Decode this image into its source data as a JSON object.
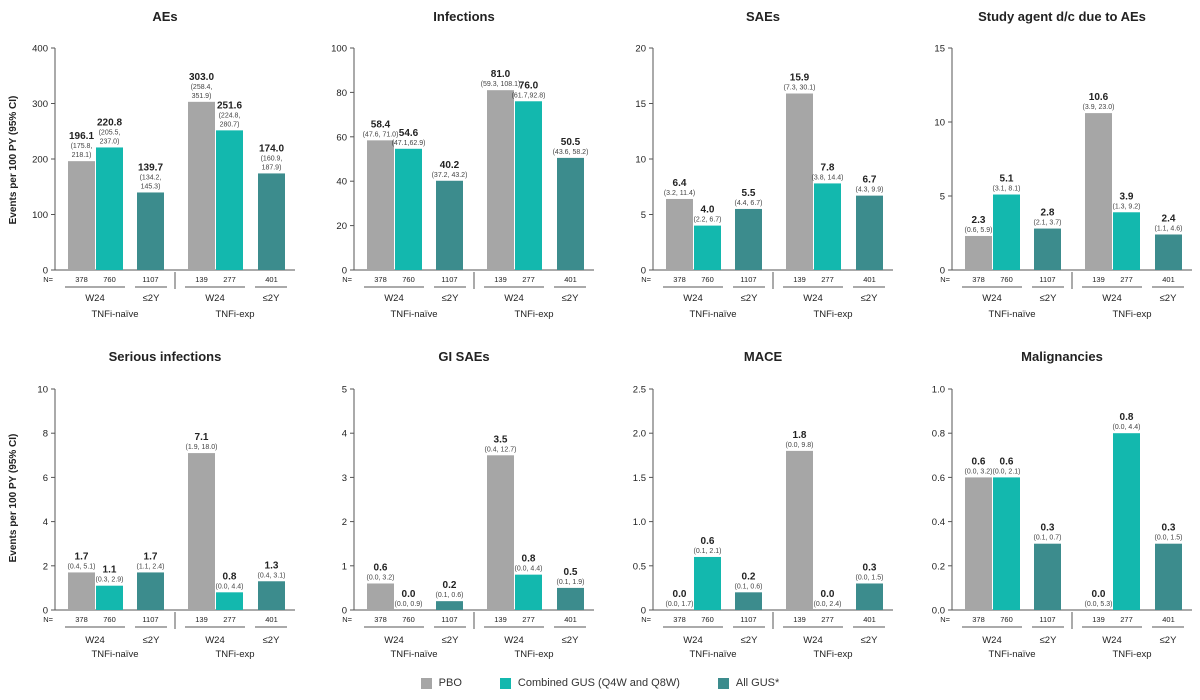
{
  "colors": {
    "pbo": "#a6a6a6",
    "combined": "#13b8ae",
    "all_gus": "#3c8c8d",
    "axis": "#555555",
    "text": "#222222"
  },
  "common": {
    "ylabel": "Events per 100 PY (95% CI)",
    "n_prefix": "N=",
    "n_values": [
      "378",
      "760",
      "1107",
      "139",
      "277",
      "401"
    ],
    "timepoints": [
      "W24",
      "≤2Y",
      "W24",
      "≤2Y"
    ],
    "groups": [
      "TNFi-naïve",
      "TNFi-exp"
    ]
  },
  "legend": [
    {
      "label": "PBO",
      "color": "#a6a6a6"
    },
    {
      "label": "Combined GUS (Q4W and Q8W)",
      "color": "#13b8ae"
    },
    {
      "label": "All GUS*",
      "color": "#3c8c8d"
    }
  ],
  "chart_data": [
    {
      "type": "bar",
      "title": "AEs",
      "ylabel": "Events per 100 PY (95% CI)",
      "ylim": [
        0,
        400
      ],
      "yticks": [
        "0",
        "100",
        "200",
        "300",
        "400"
      ],
      "categories": [
        "378",
        "760",
        "1107",
        "139",
        "277",
        "401"
      ],
      "series_per_bar": [
        "PBO",
        "Combined GUS",
        "All GUS",
        "PBO",
        "Combined GUS",
        "All GUS"
      ],
      "values": [
        196.1,
        220.8,
        139.7,
        303.0,
        251.6,
        174.0
      ],
      "value_labels": [
        "196.1",
        "220.8",
        "139.7",
        "303.0",
        "251.6",
        "174.0"
      ],
      "ci_labels": [
        [
          "(175.8,",
          "218.1)"
        ],
        [
          "(205.5,",
          "237.0)"
        ],
        [
          "(134.2,",
          "145.3)"
        ],
        [
          "(258.4,",
          "351.9)"
        ],
        [
          "(224.8,",
          "280.7)"
        ],
        [
          "(160.9,",
          "187.9)"
        ]
      ]
    },
    {
      "type": "bar",
      "title": "Infections",
      "ylim": [
        0,
        100
      ],
      "yticks": [
        "0",
        "20",
        "40",
        "60",
        "80",
        "100"
      ],
      "categories": [
        "378",
        "760",
        "1107",
        "139",
        "277",
        "401"
      ],
      "series_per_bar": [
        "PBO",
        "Combined GUS",
        "All GUS",
        "PBO",
        "Combined GUS",
        "All GUS"
      ],
      "values": [
        58.4,
        54.6,
        40.2,
        81.0,
        76.0,
        50.5
      ],
      "value_labels": [
        "58.4",
        "54.6",
        "40.2",
        "81.0",
        "76.0",
        "50.5"
      ],
      "ci_labels": [
        [
          "(47.6, 71.0)"
        ],
        [
          "(47.1,62.9)"
        ],
        [
          "(37.2, 43.2)"
        ],
        [
          "(59.3, 108.1)"
        ],
        [
          "(61.7,92.8)"
        ],
        [
          "(43.6, 58.2)"
        ]
      ]
    },
    {
      "type": "bar",
      "title": "SAEs",
      "ylim": [
        0,
        20
      ],
      "yticks": [
        "0",
        "5",
        "10",
        "15",
        "20"
      ],
      "categories": [
        "378",
        "760",
        "1107",
        "139",
        "277",
        "401"
      ],
      "series_per_bar": [
        "PBO",
        "Combined GUS",
        "All GUS",
        "PBO",
        "Combined GUS",
        "All GUS"
      ],
      "values": [
        6.4,
        4.0,
        5.5,
        15.9,
        7.8,
        6.7
      ],
      "value_labels": [
        "6.4",
        "4.0",
        "5.5",
        "15.9",
        "7.8",
        "6.7"
      ],
      "ci_labels": [
        [
          "(3.2, 11.4)"
        ],
        [
          "(2.2, 6.7)"
        ],
        [
          "(4.4, 6.7)"
        ],
        [
          "(7.3, 30.1)"
        ],
        [
          "(3.8, 14.4)"
        ],
        [
          "(4.3, 9.9)"
        ]
      ]
    },
    {
      "type": "bar",
      "title": "Study agent d/c due to AEs",
      "ylim": [
        0,
        15
      ],
      "yticks": [
        "0",
        "5",
        "10",
        "15"
      ],
      "categories": [
        "378",
        "760",
        "1107",
        "139",
        "277",
        "401"
      ],
      "series_per_bar": [
        "PBO",
        "Combined GUS",
        "All GUS",
        "PBO",
        "Combined GUS",
        "All GUS"
      ],
      "values": [
        2.3,
        5.1,
        2.8,
        10.6,
        3.9,
        2.4
      ],
      "value_labels": [
        "2.3",
        "5.1",
        "2.8",
        "10.6",
        "3.9",
        "2.4"
      ],
      "ci_labels": [
        [
          "(0.6, 5.9)"
        ],
        [
          "(3.1, 8.1)"
        ],
        [
          "(2.1, 3.7)"
        ],
        [
          "(3.9, 23.0)"
        ],
        [
          "(1.3, 9.2)"
        ],
        [
          "(1.1, 4.6)"
        ]
      ]
    },
    {
      "type": "bar",
      "title": "Serious infections",
      "ylabel": "Events per 100 PY (95% CI)",
      "ylim": [
        0,
        10
      ],
      "yticks": [
        "0",
        "2",
        "4",
        "6",
        "8",
        "10"
      ],
      "categories": [
        "378",
        "760",
        "1107",
        "139",
        "277",
        "401"
      ],
      "series_per_bar": [
        "PBO",
        "Combined GUS",
        "All GUS",
        "PBO",
        "Combined GUS",
        "All GUS"
      ],
      "values": [
        1.7,
        1.1,
        1.7,
        7.1,
        0.8,
        1.3
      ],
      "value_labels": [
        "1.7",
        "1.1",
        "1.7",
        "7.1",
        "0.8",
        "1.3"
      ],
      "ci_labels": [
        [
          "(0.4, 5.1)"
        ],
        [
          "(0.3, 2.9)"
        ],
        [
          "(1.1, 2.4)"
        ],
        [
          "(1.9, 18.0)"
        ],
        [
          "(0.0, 4.4)"
        ],
        [
          "(0.4, 3.1)"
        ]
      ]
    },
    {
      "type": "bar",
      "title": "GI SAEs",
      "ylim": [
        0,
        5
      ],
      "yticks": [
        "0",
        "1",
        "2",
        "3",
        "4",
        "5"
      ],
      "categories": [
        "378",
        "760",
        "1107",
        "139",
        "277",
        "401"
      ],
      "series_per_bar": [
        "PBO",
        "Combined GUS",
        "All GUS",
        "PBO",
        "Combined GUS",
        "All GUS"
      ],
      "values": [
        0.6,
        0.0,
        0.2,
        3.5,
        0.8,
        0.5
      ],
      "value_labels": [
        "0.6",
        "0.0",
        "0.2",
        "3.5",
        "0.8",
        "0.5"
      ],
      "ci_labels": [
        [
          "(0.0, 3.2)"
        ],
        [
          "(0.0, 0.9)"
        ],
        [
          "(0.1, 0.6)"
        ],
        [
          "(0.4, 12.7)"
        ],
        [
          "(0.0, 4.4)"
        ],
        [
          "(0.1, 1.9)"
        ]
      ]
    },
    {
      "type": "bar",
      "title": "MACE",
      "ylim": [
        0,
        2.5
      ],
      "yticks": [
        "0",
        "0.5",
        "1.0",
        "1.5",
        "2.0",
        "2.5"
      ],
      "categories": [
        "378",
        "760",
        "1107",
        "139",
        "277",
        "401"
      ],
      "series_per_bar": [
        "PBO",
        "Combined GUS",
        "All GUS",
        "PBO",
        "Combined GUS",
        "All GUS"
      ],
      "values": [
        0.0,
        0.6,
        0.2,
        1.8,
        0.0,
        0.3
      ],
      "value_labels": [
        "0.0",
        "0.6",
        "0.2",
        "1.8",
        "0.0",
        "0.3"
      ],
      "ci_labels": [
        [
          "(0.0, 1.7)"
        ],
        [
          "(0.1, 2.1)"
        ],
        [
          "(0.1, 0.6)"
        ],
        [
          "(0.0, 9.8)"
        ],
        [
          "(0.0, 2.4)"
        ],
        [
          "(0.0, 1.5)"
        ]
      ]
    },
    {
      "type": "bar",
      "title": "Malignancies",
      "ylim": [
        0,
        1.0
      ],
      "yticks": [
        "0.0",
        "0.2",
        "0.4",
        "0.6",
        "0.8",
        "1.0"
      ],
      "categories": [
        "378",
        "760",
        "1107",
        "139",
        "277",
        "401"
      ],
      "series_per_bar": [
        "PBO",
        "Combined GUS",
        "All GUS",
        "PBO",
        "Combined GUS",
        "All GUS"
      ],
      "values": [
        0.6,
        0.6,
        0.3,
        0.0,
        0.8,
        0.3
      ],
      "value_labels": [
        "0.6",
        "0.6",
        "0.3",
        "0.0",
        "0.8",
        "0.3"
      ],
      "ci_labels": [
        [
          "(0.0, 3.2)"
        ],
        [
          "(0.0, 2.1)"
        ],
        [
          "(0.1, 0.7)"
        ],
        [
          "(0.0, 5.3)"
        ],
        [
          "(0.0, 4.4)"
        ],
        [
          "(0.0, 1.5)"
        ]
      ]
    }
  ]
}
